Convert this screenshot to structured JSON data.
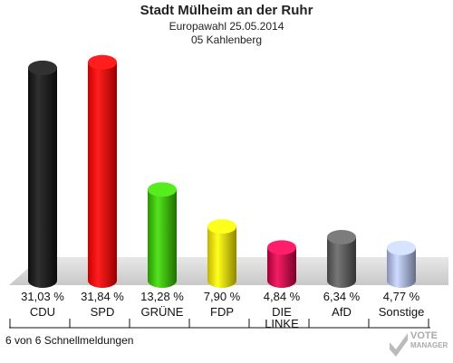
{
  "header": {
    "title": "Stadt Mülheim an der Ruhr",
    "subtitle1": "Europawahl 25.05.2014",
    "subtitle2": "05 Kahlenberg"
  },
  "footer": {
    "status": "6 von 6 Schnellmeldungen",
    "logo_line1": "VOTE",
    "logo_line2": "MANAGER"
  },
  "chart_data": {
    "type": "bar",
    "categories": [
      "CDU",
      "SPD",
      "GRÜNE",
      "FDP",
      "DIE LINKE",
      "AfD",
      "Sonstige"
    ],
    "category_lines": [
      [
        "CDU"
      ],
      [
        "SPD"
      ],
      [
        "GRÜNE"
      ],
      [
        "FDP"
      ],
      [
        "DIE",
        "LINKE"
      ],
      [
        "AfD"
      ],
      [
        "Sonstige"
      ]
    ],
    "values": [
      31.03,
      31.84,
      13.28,
      7.9,
      4.84,
      6.34,
      4.77
    ],
    "value_labels": [
      "31,03 %",
      "31,84 %",
      "13,28 %",
      "7,90 %",
      "4,84 %",
      "6,34 %",
      "4,77 %"
    ],
    "colors": [
      "#111111",
      "#ff0000",
      "#33bb00",
      "#f2e000",
      "#cc0044",
      "#555555",
      "#a8b4e0"
    ],
    "ylim": [
      0,
      33
    ],
    "title": "Stadt Mülheim an der Ruhr"
  }
}
